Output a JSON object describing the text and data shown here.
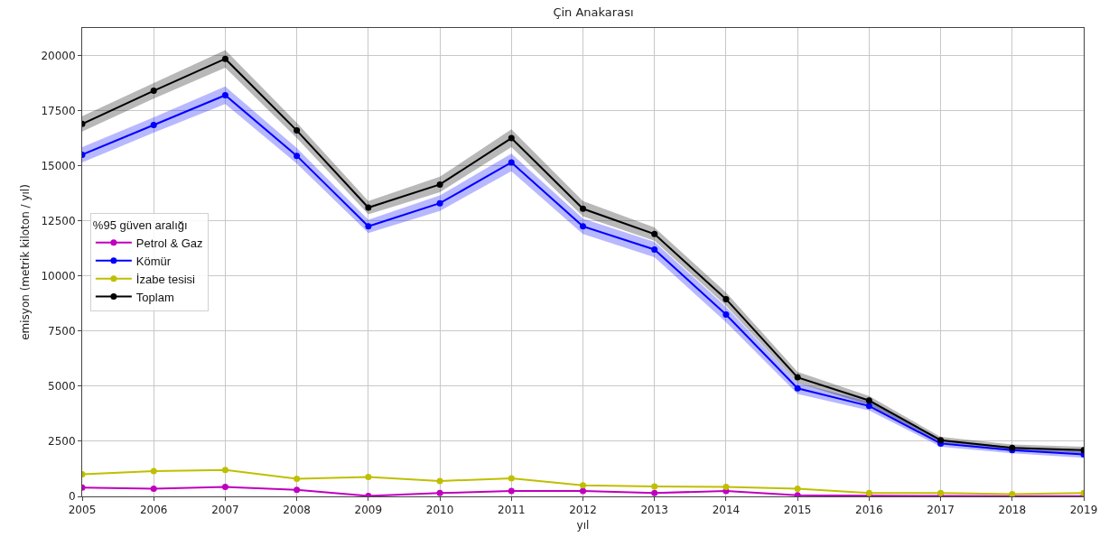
{
  "chart_data": {
    "type": "line",
    "title": "Çin Anakarası",
    "xlabel": "yıl",
    "ylabel": "emisyon (metrik kiloton / yıl)",
    "legend_title": "%95 güven aralığı",
    "x": [
      2005,
      2006,
      2007,
      2008,
      2009,
      2010,
      2011,
      2012,
      2013,
      2014,
      2015,
      2016,
      2017,
      2018,
      2019
    ],
    "series": [
      {
        "name": "Petrol & Gaz",
        "color": "#bf00bf",
        "values": [
          400,
          350,
          430,
          300,
          20,
          150,
          250,
          250,
          150,
          250,
          50,
          30,
          20,
          10,
          10
        ]
      },
      {
        "name": "Kömür",
        "color": "#0000ff",
        "values": [
          15500,
          16850,
          18200,
          15450,
          12250,
          13300,
          15150,
          12250,
          11200,
          8250,
          4900,
          4100,
          2400,
          2100,
          1900
        ],
        "lower": [
          15150,
          16500,
          17800,
          15100,
          11950,
          12950,
          14750,
          11900,
          10850,
          7900,
          4650,
          3900,
          2250,
          1950,
          1750
        ],
        "upper": [
          15850,
          17200,
          18600,
          15800,
          12550,
          13650,
          15550,
          12600,
          11550,
          8600,
          5150,
          4300,
          2550,
          2250,
          2050
        ]
      },
      {
        "name": "İzabe tesisi",
        "color": "#bfbf00",
        "values": [
          1000,
          1150,
          1200,
          800,
          880,
          700,
          820,
          500,
          450,
          430,
          350,
          150,
          150,
          100,
          150
        ]
      },
      {
        "name": "Toplam",
        "color": "#000000",
        "values": [
          16900,
          18400,
          19850,
          16600,
          13100,
          14150,
          16250,
          13050,
          11900,
          8950,
          5400,
          4350,
          2550,
          2200,
          2100
        ],
        "lower": [
          16550,
          18050,
          19450,
          16250,
          12800,
          13800,
          15850,
          12700,
          11600,
          8650,
          5150,
          4150,
          2400,
          2050,
          1950
        ],
        "upper": [
          17250,
          18750,
          20250,
          16950,
          13400,
          14500,
          16650,
          13400,
          12200,
          9250,
          5650,
          4550,
          2700,
          2350,
          2250
        ]
      }
    ],
    "xlim": [
      2005,
      2019
    ],
    "xticks": [
      2005,
      2006,
      2007,
      2008,
      2009,
      2010,
      2011,
      2012,
      2013,
      2014,
      2015,
      2016,
      2017,
      2018,
      2019
    ],
    "ylim": [
      0,
      21250
    ],
    "yticks": [
      0,
      2500,
      5000,
      7500,
      10000,
      12500,
      15000,
      17500,
      20000
    ],
    "grid": true,
    "legend": "center left",
    "marker": "circle",
    "line_style": "solid"
  }
}
